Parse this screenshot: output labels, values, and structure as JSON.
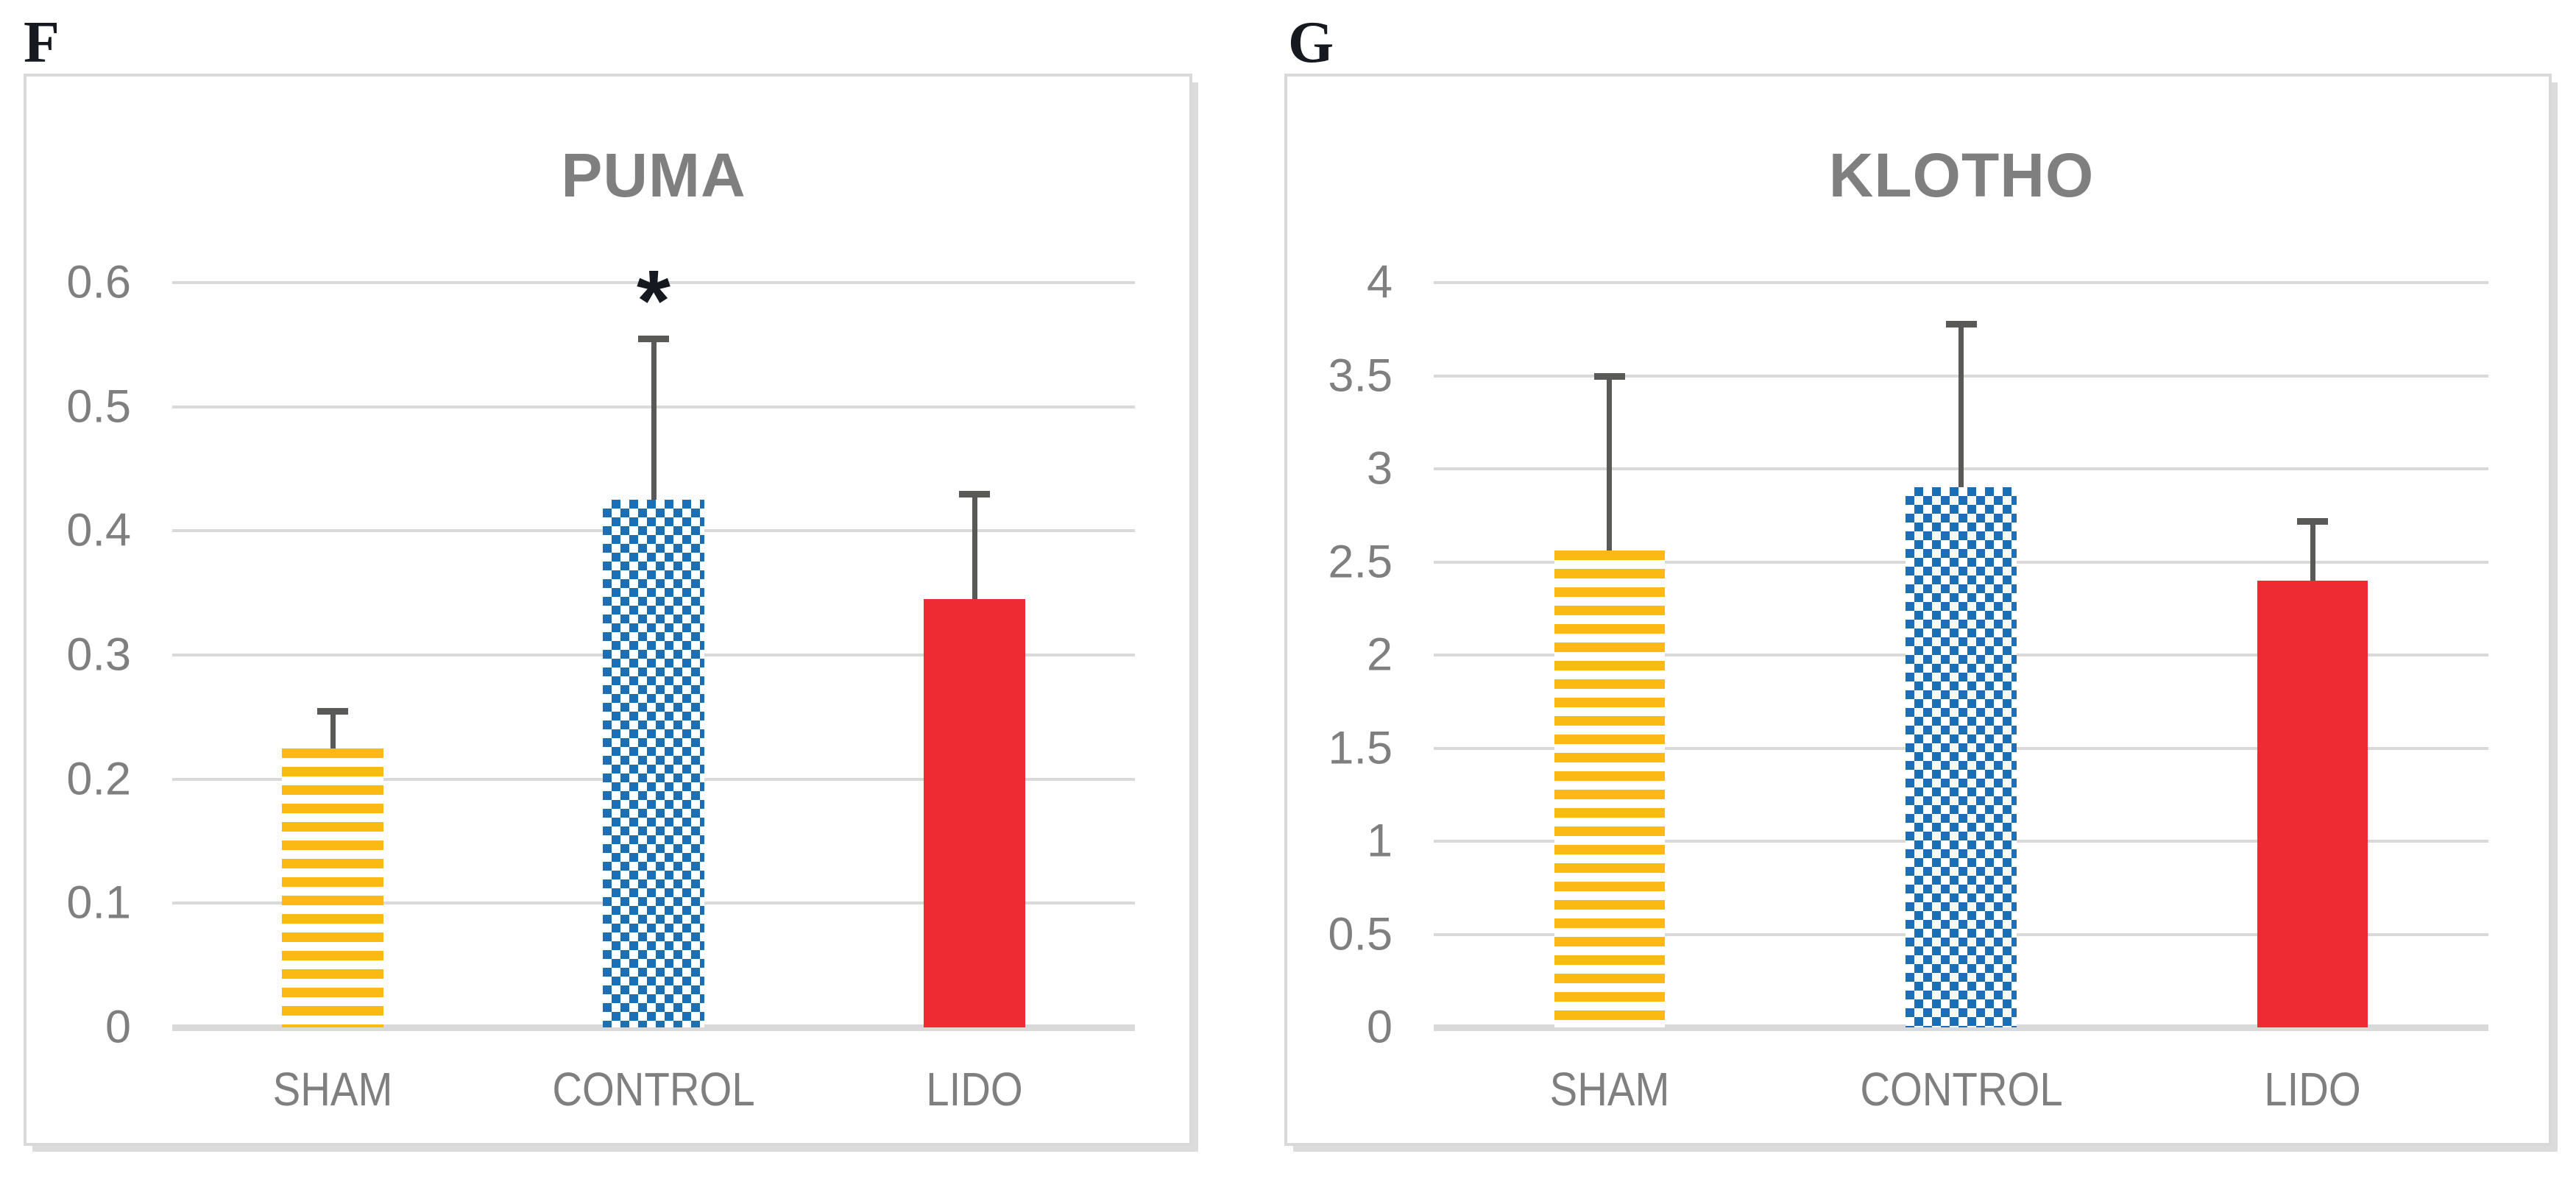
{
  "figure": {
    "background": "#ffffff",
    "panels": [
      {
        "letter": "F"
      },
      {
        "letter": "G"
      }
    ]
  },
  "chart_data": [
    {
      "type": "bar",
      "title": "PUMA",
      "categories": [
        "SHAM",
        "CONTROL",
        "LIDO"
      ],
      "values": [
        0.225,
        0.425,
        0.345
      ],
      "errors_upper": [
        0.255,
        0.555,
        0.43
      ],
      "xlabel": "",
      "ylabel": "",
      "ylim": [
        0,
        0.6
      ],
      "yticks": [
        0,
        0.1,
        0.2,
        0.3,
        0.4,
        0.5,
        0.6
      ],
      "ytick_labels": [
        "0",
        "0.1",
        "0.2",
        "0.3",
        "0.4",
        "0.5",
        "0.6"
      ],
      "grid": true,
      "legend": "none",
      "annotations": [
        {
          "text": "*",
          "category_index": 1,
          "y": 0.595,
          "color": "#16191f"
        }
      ],
      "bar_styles": [
        {
          "name": "sham",
          "pattern": "horizontal-stripes",
          "color": "#FBBA13"
        },
        {
          "name": "control",
          "pattern": "checkerboard",
          "color": "#1C6FB5"
        },
        {
          "name": "lido",
          "pattern": "solid",
          "color": "#EE2B33"
        }
      ],
      "error_bar_color": "#595957",
      "gridline_color": "#d9d9d9",
      "axis_text_color": "#7f7f7f",
      "title_color": "#7f7f7f"
    },
    {
      "type": "bar",
      "title": "KLOTHO",
      "categories": [
        "SHAM",
        "CONTROL",
        "LIDO"
      ],
      "values": [
        2.56,
        2.9,
        2.4
      ],
      "errors_upper": [
        3.5,
        3.78,
        2.72
      ],
      "xlabel": "",
      "ylabel": "",
      "ylim": [
        0,
        4
      ],
      "yticks": [
        0,
        0.5,
        1,
        1.5,
        2,
        2.5,
        3,
        3.5,
        4
      ],
      "ytick_labels": [
        "0",
        "0.5",
        "1",
        "1.5",
        "2",
        "2.5",
        "3",
        "3.5",
        "4"
      ],
      "grid": true,
      "legend": "none",
      "annotations": [],
      "bar_styles": [
        {
          "name": "sham",
          "pattern": "horizontal-stripes",
          "color": "#FBBA13"
        },
        {
          "name": "control",
          "pattern": "checkerboard",
          "color": "#1C6FB5"
        },
        {
          "name": "lido",
          "pattern": "solid",
          "color": "#EE2B33"
        }
      ],
      "error_bar_color": "#595957",
      "gridline_color": "#d9d9d9",
      "axis_text_color": "#7f7f7f",
      "title_color": "#7f7f7f"
    }
  ]
}
